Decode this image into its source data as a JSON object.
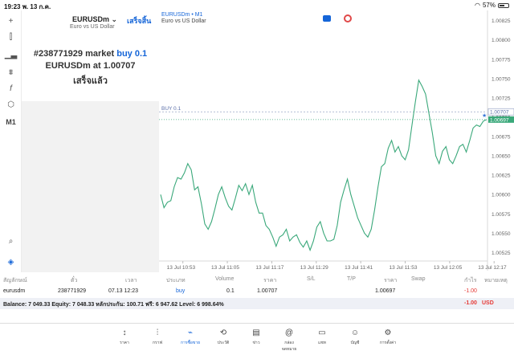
{
  "status_bar": {
    "time": "19:23",
    "date": "พ. 13 ก.ค.",
    "battery": "57%"
  },
  "toolbar": {
    "timeframe": "M1"
  },
  "order_panel": {
    "symbol": "EURUSDm",
    "description": "Euro vs US Dollar",
    "done_label": "เสร็จสิ้น",
    "msg_ticket": "#238771929 market",
    "msg_action": "buy 0.1",
    "msg_symbol_at": "EURUSDm at",
    "msg_price": "1.00707",
    "msg_status": "เสร็จแล้ว"
  },
  "chart_header": {
    "symbol": "EURUSDm • M1",
    "description": "Euro vs US Dollar"
  },
  "chart_data": {
    "type": "line",
    "series_color": "#3aa87a",
    "order_line_label": "BUY 0.1",
    "order_line_price": 1.00707,
    "order_line_label_text": "1.00707",
    "current_price": 1.00697,
    "current_price_label": "1.00697",
    "ylim": [
      1.00514,
      1.00834
    ],
    "yticks": [
      "1.00825",
      "1.00800",
      "1.00775",
      "1.00750",
      "1.00725",
      "1.00700",
      "1.00675",
      "1.00650",
      "1.00625",
      "1.00600",
      "1.00575",
      "1.00550",
      "1.00525"
    ],
    "yticks_values": [
      1.00825,
      1.008,
      1.00775,
      1.0075,
      1.00725,
      1.007,
      1.00675,
      1.0065,
      1.00625,
      1.006,
      1.00575,
      1.0055,
      1.00525
    ],
    "xticks": [
      "13 Jul 10:53",
      "13 Jul 11:05",
      "13 Jul 11:17",
      "13 Jul 11:29",
      "13 Jul 11:41",
      "13 Jul 11:53",
      "13 Jul 12:05",
      "13 Jul 12:17"
    ],
    "xrange_minutes": [
      0,
      88
    ],
    "xticks_minutes": [
      6,
      18,
      30,
      42,
      54,
      66,
      78,
      90
    ],
    "points": [
      [
        0,
        1.006
      ],
      [
        1,
        1.00583
      ],
      [
        2,
        1.0059
      ],
      [
        3,
        1.00592
      ],
      [
        4,
        1.0061
      ],
      [
        5,
        1.00622
      ],
      [
        6,
        1.0062
      ],
      [
        7,
        1.00628
      ],
      [
        8,
        1.0064
      ],
      [
        9,
        1.00632
      ],
      [
        10,
        1.00606
      ],
      [
        11,
        1.0061
      ],
      [
        12,
        1.00588
      ],
      [
        13,
        1.00562
      ],
      [
        14,
        1.00555
      ],
      [
        15,
        1.00565
      ],
      [
        16,
        1.00582
      ],
      [
        17,
        1.006
      ],
      [
        18,
        1.0061
      ],
      [
        19,
        1.00596
      ],
      [
        20,
        1.00585
      ],
      [
        21,
        1.0058
      ],
      [
        22,
        1.00595
      ],
      [
        23,
        1.00612
      ],
      [
        24,
        1.00605
      ],
      [
        25,
        1.00614
      ],
      [
        26,
        1.006
      ],
      [
        27,
        1.00612
      ],
      [
        28,
        1.0059
      ],
      [
        29,
        1.00576
      ],
      [
        30,
        1.00576
      ],
      [
        31,
        1.0056
      ],
      [
        32,
        1.00555
      ],
      [
        33,
        1.00545
      ],
      [
        34,
        1.00533
      ],
      [
        35,
        1.00545
      ],
      [
        36,
        1.00548
      ],
      [
        37,
        1.00555
      ],
      [
        38,
        1.0054
      ],
      [
        39,
        1.00545
      ],
      [
        40,
        1.00548
      ],
      [
        41,
        1.00538
      ],
      [
        42,
        1.00532
      ],
      [
        43,
        1.0054
      ],
      [
        44,
        1.00528
      ],
      [
        45,
        1.0054
      ],
      [
        46,
        1.00558
      ],
      [
        47,
        1.00565
      ],
      [
        48,
        1.0055
      ],
      [
        49,
        1.0054
      ],
      [
        50,
        1.0054
      ],
      [
        51,
        1.00542
      ],
      [
        52,
        1.0056
      ],
      [
        53,
        1.0059
      ],
      [
        54,
        1.00606
      ],
      [
        55,
        1.0062
      ],
      [
        56,
        1.006
      ],
      [
        57,
        1.00585
      ],
      [
        58,
        1.0057
      ],
      [
        59,
        1.0056
      ],
      [
        60,
        1.0055
      ],
      [
        61,
        1.00545
      ],
      [
        62,
        1.00555
      ],
      [
        63,
        1.0058
      ],
      [
        64,
        1.0061
      ],
      [
        65,
        1.00636
      ],
      [
        66,
        1.0064
      ],
      [
        67,
        1.0066
      ],
      [
        68,
        1.0067
      ],
      [
        69,
        1.00655
      ],
      [
        70,
        1.00662
      ],
      [
        71,
        1.0065
      ],
      [
        72,
        1.00645
      ],
      [
        73,
        1.00658
      ],
      [
        74,
        1.0069
      ],
      [
        75,
        1.0072
      ],
      [
        76,
        1.00748
      ],
      [
        77,
        1.0074
      ],
      [
        78,
        1.0073
      ],
      [
        79,
        1.00705
      ],
      [
        80,
        1.0068
      ],
      [
        81,
        1.0065
      ],
      [
        82,
        1.0064
      ],
      [
        83,
        1.00656
      ],
      [
        84,
        1.00662
      ],
      [
        85,
        1.00645
      ],
      [
        86,
        1.0064
      ],
      [
        87,
        1.0065
      ],
      [
        88,
        1.00662
      ],
      [
        89,
        1.00665
      ],
      [
        90,
        1.00655
      ],
      [
        91,
        1.0067
      ],
      [
        92,
        1.00686
      ],
      [
        93,
        1.0069
      ],
      [
        94,
        1.00688
      ],
      [
        95,
        1.00695
      ],
      [
        96,
        1.00697
      ]
    ]
  },
  "table": {
    "headers": {
      "symbol": "สัญลักษณ์",
      "ticket": "ตั๋ว",
      "time": "เวลา",
      "type": "ประเภท",
      "volume": "Volume",
      "price": "ราคา",
      "sl": "S/L",
      "tp": "T/P",
      "cur_price": "ราคา",
      "swap": "Swap",
      "profit": "กำไร",
      "comment": "หมายเหตุ"
    },
    "row": {
      "symbol": "eurusdm",
      "ticket": "238771929",
      "time": "07.13 12:23",
      "type": "buy",
      "volume": "0.1",
      "price": "1.00707",
      "cur_price": "1.00697",
      "profit": "-1.00"
    },
    "balance_text": "Balance: 7 049.33 Equity: 7 048.33 หลักประกัน: 100.71 ฟรี: 6 947.62 Level: 6 998.64%",
    "balance_profit": "-1.00",
    "balance_currency": "USD"
  },
  "tabs": [
    {
      "label": "ราคา",
      "icon": "↕"
    },
    {
      "label": "กราฟ",
      "icon": "⫶"
    },
    {
      "label": "การซื้อขาย",
      "icon": "⌁"
    },
    {
      "label": "ประวัติ",
      "icon": "⟲"
    },
    {
      "label": "ข่าว",
      "icon": "▤"
    },
    {
      "label": "กล่องจดหมาย",
      "icon": "@"
    },
    {
      "label": "แชท",
      "icon": "▭"
    },
    {
      "label": "บัญชี",
      "icon": "☺"
    },
    {
      "label": "การตั้งค่า",
      "icon": "⚙"
    }
  ],
  "colors": {
    "accent": "#1565d8",
    "loss": "#e53935",
    "series": "#3aa87a"
  }
}
